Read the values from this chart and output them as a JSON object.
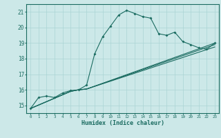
{
  "xlabel": "Humidex (Indice chaleur)",
  "background_color": "#cce8e8",
  "line_color": "#1a6b60",
  "grid_color": "#aad4d4",
  "xlim": [
    -0.5,
    23.5
  ],
  "ylim": [
    14.5,
    21.5
  ],
  "yticks": [
    15,
    16,
    17,
    18,
    19,
    20,
    21
  ],
  "xticks": [
    0,
    1,
    2,
    3,
    4,
    5,
    6,
    7,
    8,
    9,
    10,
    11,
    12,
    13,
    14,
    15,
    16,
    17,
    18,
    19,
    20,
    21,
    22,
    23
  ],
  "series1": [
    [
      0,
      14.8
    ],
    [
      1,
      15.5
    ],
    [
      2,
      15.6
    ],
    [
      3,
      15.5
    ],
    [
      4,
      15.8
    ],
    [
      5,
      15.95
    ],
    [
      6,
      16.0
    ],
    [
      7,
      16.3
    ],
    [
      8,
      18.3
    ],
    [
      9,
      19.4
    ],
    [
      10,
      20.1
    ],
    [
      11,
      20.8
    ],
    [
      12,
      21.1
    ],
    [
      13,
      20.9
    ],
    [
      14,
      20.7
    ],
    [
      15,
      20.6
    ],
    [
      16,
      19.6
    ],
    [
      17,
      19.5
    ],
    [
      18,
      19.7
    ],
    [
      19,
      19.1
    ],
    [
      20,
      18.9
    ],
    [
      21,
      18.7
    ],
    [
      22,
      18.6
    ],
    [
      23,
      19.0
    ]
  ],
  "series2": [
    [
      0,
      14.8
    ],
    [
      5,
      15.9
    ],
    [
      6,
      16.0
    ],
    [
      7,
      16.05
    ],
    [
      23,
      19.0
    ]
  ],
  "series3": [
    [
      0,
      14.8
    ],
    [
      5,
      15.9
    ],
    [
      6,
      16.0
    ],
    [
      7,
      16.05
    ],
    [
      23,
      18.9
    ]
  ],
  "series4": [
    [
      0,
      14.8
    ],
    [
      5,
      15.9
    ],
    [
      6,
      16.0
    ],
    [
      7,
      16.05
    ],
    [
      23,
      18.75
    ]
  ]
}
